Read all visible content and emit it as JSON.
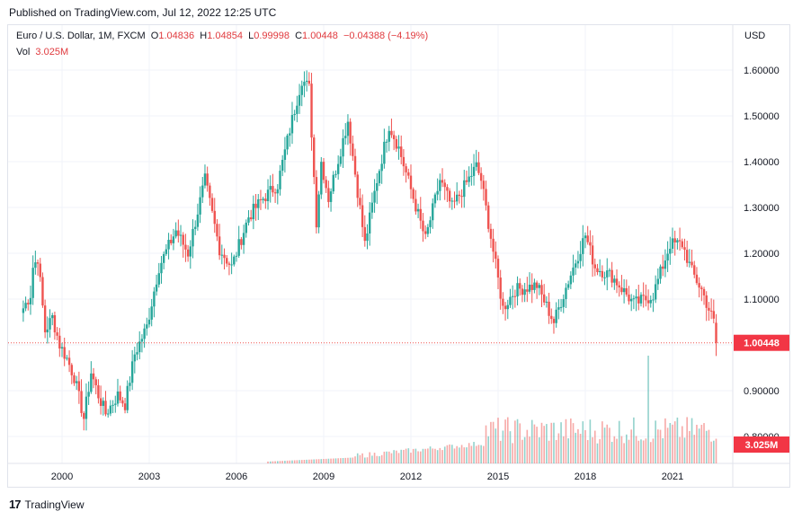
{
  "published": "Published on TradingView.com, Jul 12, 2022 12:25 UTC",
  "legend": {
    "symbol": "Euro / U.S. Dollar, 1M, FXCM",
    "o_label": "O",
    "o_value": "1.04836",
    "h_label": "H",
    "h_value": "1.04854",
    "l_label": "L",
    "l_value": "0.99998",
    "c_label": "C",
    "c_value": "1.00448",
    "change": "−0.04388 (−4.19%)",
    "vol_label": "Vol",
    "vol_value": "3.025M"
  },
  "currency": "USD",
  "footer_brand": "TradingView",
  "colors": {
    "up": "#26a69a",
    "down": "#ef5350",
    "price_badge": "#f23645",
    "grid": "#f0f3fa",
    "text": "#131722"
  },
  "chart_data": {
    "type": "candlestick",
    "interval": "1M",
    "price_ylim": [
      0.82,
      1.64
    ],
    "y_ticks": [
      "0.80000",
      "0.90000",
      "1.00000",
      "1.10000",
      "1.20000",
      "1.30000",
      "1.40000",
      "1.50000",
      "1.60000"
    ],
    "x_ticks": [
      "2000",
      "2003",
      "2006",
      "2009",
      "2012",
      "2015",
      "2018",
      "2021"
    ],
    "last_price": "1.00448",
    "last_volume": "3.025M",
    "close_path": [
      [
        "1998-09",
        1.08
      ],
      [
        "1998-12",
        1.11
      ],
      [
        "1999-01",
        1.17
      ],
      [
        "1999-03",
        1.19
      ],
      [
        "1999-06",
        1.03
      ],
      [
        "1999-09",
        1.06
      ],
      [
        "1999-12",
        1.0
      ],
      [
        "2000-03",
        0.97
      ],
      [
        "2000-06",
        0.93
      ],
      [
        "2000-10",
        0.84
      ],
      [
        "2001-01",
        0.94
      ],
      [
        "2001-04",
        0.89
      ],
      [
        "2001-07",
        0.85
      ],
      [
        "2001-12",
        0.89
      ],
      [
        "2002-03",
        0.87
      ],
      [
        "2002-07",
        0.98
      ],
      [
        "2002-12",
        1.04
      ],
      [
        "2003-05",
        1.17
      ],
      [
        "2003-12",
        1.25
      ],
      [
        "2004-05",
        1.2
      ],
      [
        "2004-12",
        1.36
      ],
      [
        "2005-06",
        1.21
      ],
      [
        "2005-11",
        1.17
      ],
      [
        "2006-06",
        1.28
      ],
      [
        "2006-12",
        1.32
      ],
      [
        "2007-06",
        1.35
      ],
      [
        "2007-11",
        1.47
      ],
      [
        "2008-04",
        1.58
      ],
      [
        "2008-07",
        1.56
      ],
      [
        "2008-10",
        1.27
      ],
      [
        "2008-12",
        1.4
      ],
      [
        "2009-03",
        1.32
      ],
      [
        "2009-11",
        1.49
      ],
      [
        "2010-06",
        1.22
      ],
      [
        "2010-11",
        1.36
      ],
      [
        "2011-04",
        1.48
      ],
      [
        "2011-08",
        1.43
      ],
      [
        "2012-07",
        1.23
      ],
      [
        "2013-01",
        1.36
      ],
      [
        "2013-06",
        1.3
      ],
      [
        "2014-04",
        1.39
      ],
      [
        "2014-06",
        1.36
      ],
      [
        "2015-03",
        1.08
      ],
      [
        "2015-08",
        1.12
      ],
      [
        "2016-05",
        1.13
      ],
      [
        "2016-12",
        1.05
      ],
      [
        "2017-06",
        1.14
      ],
      [
        "2018-01",
        1.24
      ],
      [
        "2018-05",
        1.17
      ],
      [
        "2018-12",
        1.15
      ],
      [
        "2019-09",
        1.09
      ],
      [
        "2020-02",
        1.1
      ],
      [
        "2020-05",
        1.11
      ],
      [
        "2020-12",
        1.22
      ],
      [
        "2021-05",
        1.22
      ],
      [
        "2021-09",
        1.16
      ],
      [
        "2022-01",
        1.12
      ],
      [
        "2022-06",
        1.05
      ],
      [
        "2022-07",
        1.00448
      ]
    ],
    "volume_note": "volume bars appear from ~2007, rising through 2015 onward; spike in 2020-03"
  }
}
